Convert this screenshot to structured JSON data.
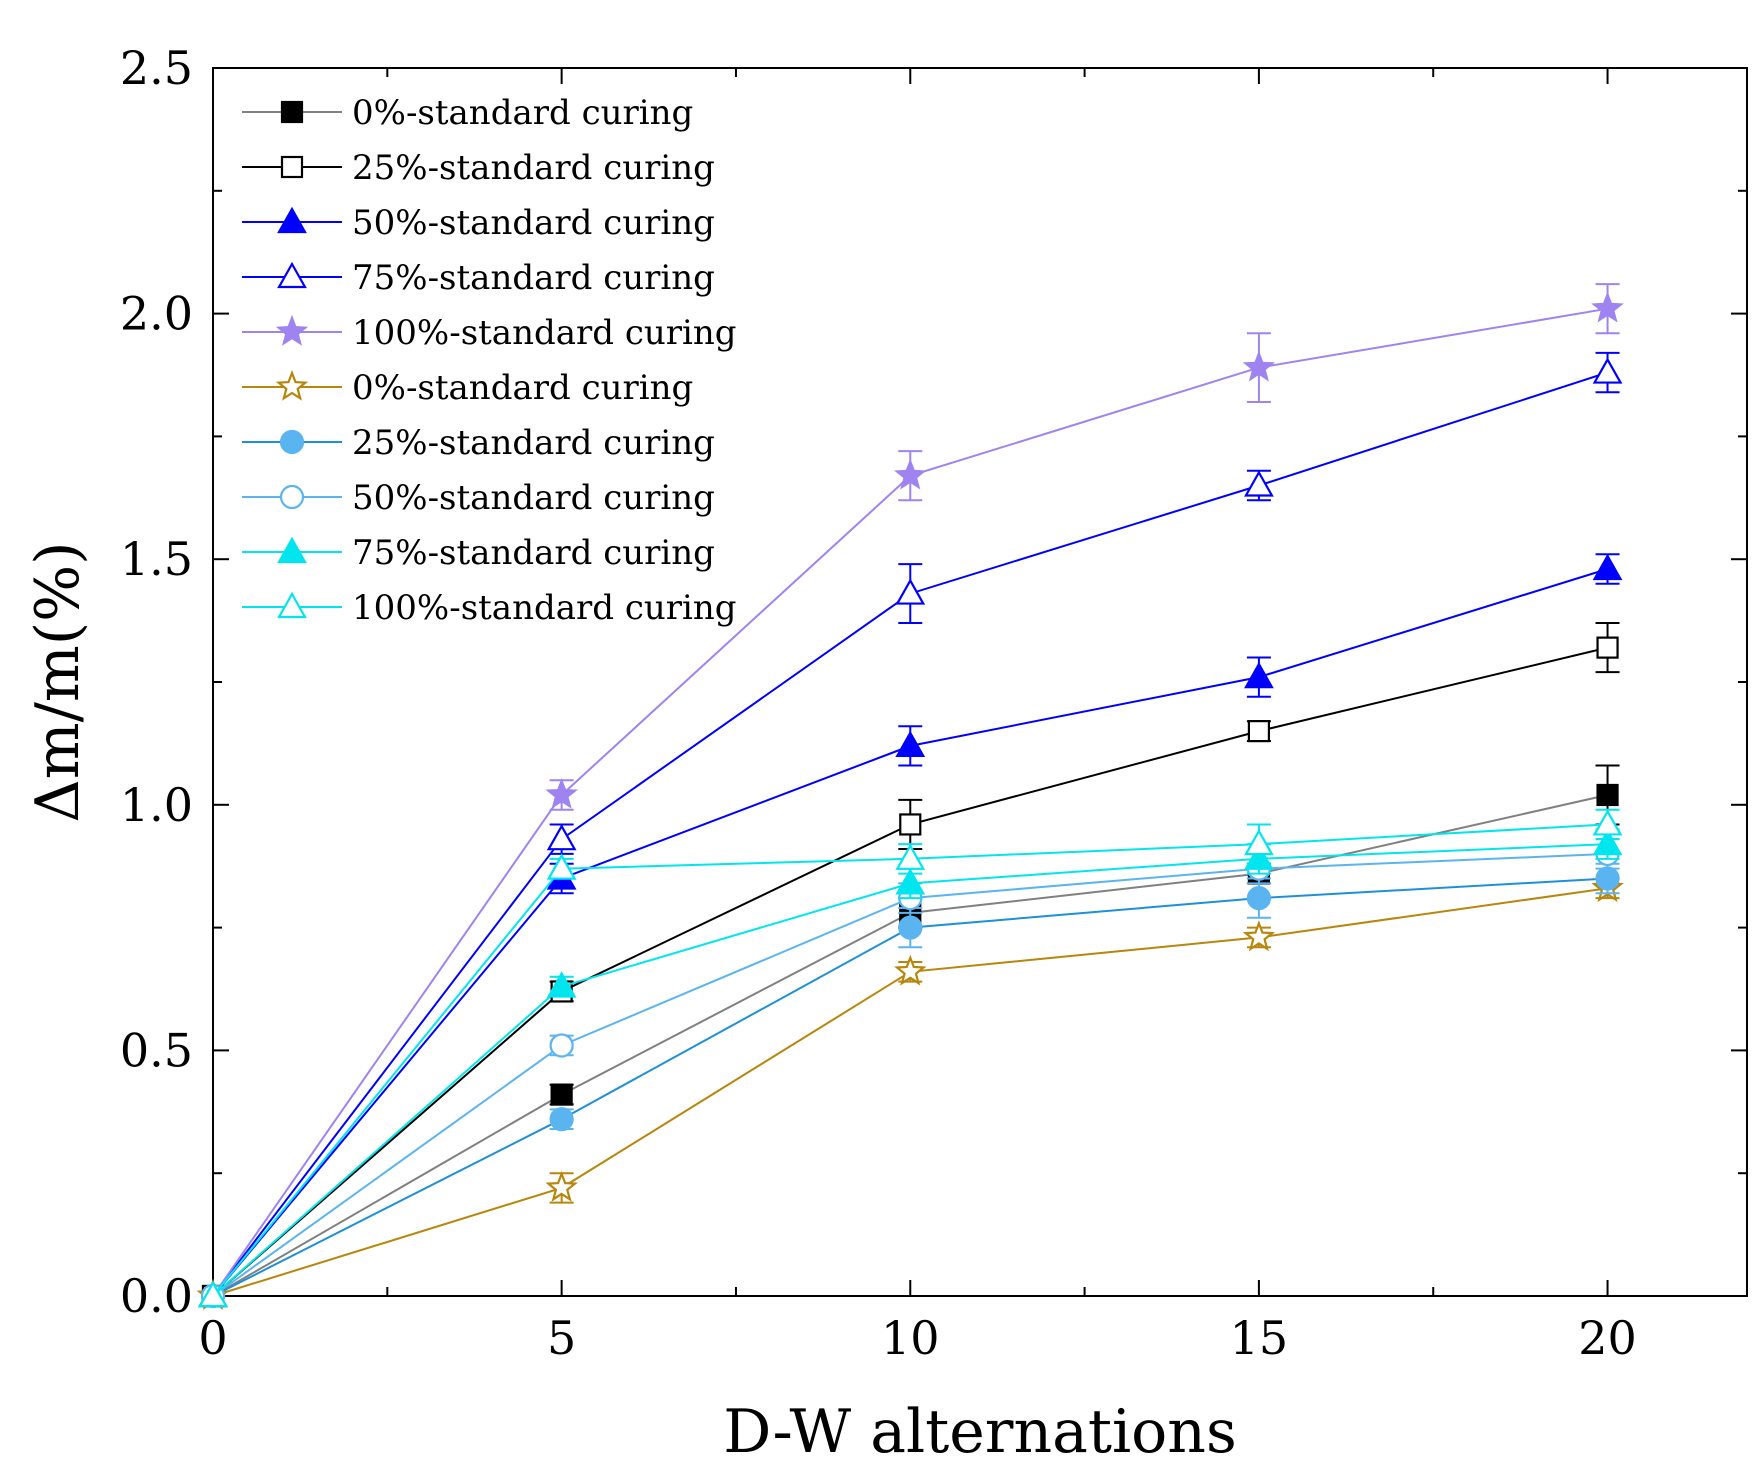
{
  "chart_data": {
    "type": "line",
    "title": "",
    "xlabel": "D-W alternations",
    "ylabel": "Δm/m(%)",
    "xlim": [
      0,
      22
    ],
    "ylim": [
      0,
      2.5
    ],
    "x_ticks": [
      0,
      5,
      10,
      15,
      20
    ],
    "y_ticks": [
      0.0,
      0.5,
      1.0,
      1.5,
      2.0,
      2.5
    ],
    "x_tick_labels": [
      "0",
      "5",
      "10",
      "15",
      "20"
    ],
    "y_tick_labels": [
      "0.0",
      "0.5",
      "1.0",
      "1.5",
      "2.0",
      "2.5"
    ],
    "legend_position": "top-left",
    "x": [
      0,
      5,
      10,
      15,
      20
    ],
    "series": [
      {
        "name": "0%-standard curing",
        "color": "#808080",
        "marker_color": "#000000",
        "marker": "square-filled",
        "values": [
          0,
          0.41,
          0.78,
          0.86,
          1.02
        ],
        "errors": [
          0,
          0.02,
          0.03,
          0.02,
          0.06
        ]
      },
      {
        "name": "25%-standard curing",
        "color": "#000000",
        "marker_color": "#000000",
        "marker": "square-open",
        "values": [
          0,
          0.62,
          0.96,
          1.15,
          1.32
        ],
        "errors": [
          0,
          0.02,
          0.05,
          0.02,
          0.05
        ]
      },
      {
        "name": "50%-standard curing",
        "color": "#0000ff",
        "marker_color": "#0000ff",
        "marker": "triangle-filled",
        "values": [
          0,
          0.85,
          1.12,
          1.26,
          1.48
        ],
        "errors": [
          0,
          0.03,
          0.04,
          0.04,
          0.03
        ]
      },
      {
        "name": "75%-standard curing",
        "color": "#0000ff",
        "marker_color": "#0000ff",
        "marker": "triangle-open",
        "values": [
          0,
          0.93,
          1.43,
          1.65,
          1.88
        ],
        "errors": [
          0,
          0.03,
          0.06,
          0.03,
          0.04
        ]
      },
      {
        "name": "100%-standard curing",
        "color": "#9f83f0",
        "marker_color": "#9f83f0",
        "marker": "star-filled",
        "values": [
          0,
          1.02,
          1.67,
          1.89,
          2.01
        ],
        "errors": [
          0,
          0.03,
          0.05,
          0.07,
          0.05
        ]
      },
      {
        "name": "0%-standard curing",
        "color": "#b8860b",
        "marker_color": "#b8860b",
        "marker": "star-open",
        "values": [
          0,
          0.22,
          0.66,
          0.73,
          0.83
        ],
        "errors": [
          0,
          0.03,
          0.02,
          0.02,
          0.02
        ]
      },
      {
        "name": "25%-standard curing",
        "color": "#1e90d8",
        "marker_color": "#5ab4f0",
        "marker": "circle-filled",
        "values": [
          0,
          0.36,
          0.75,
          0.81,
          0.85
        ],
        "errors": [
          0,
          0.02,
          0.04,
          0.04,
          0.03
        ]
      },
      {
        "name": "50%-standard curing",
        "color": "#5ab4f0",
        "marker_color": "#5ab4f0",
        "marker": "circle-open",
        "values": [
          0,
          0.51,
          0.81,
          0.87,
          0.9
        ],
        "errors": [
          0,
          0.02,
          0.03,
          0.03,
          0.03
        ]
      },
      {
        "name": "75%-standard curing",
        "color": "#00e5ee",
        "marker_color": "#00e5ee",
        "marker": "triangle-filled",
        "values": [
          0,
          0.63,
          0.84,
          0.89,
          0.92
        ],
        "errors": [
          0,
          0.02,
          0.03,
          0.03,
          0.03
        ]
      },
      {
        "name": "100%-standard curing",
        "color": "#00e5ee",
        "marker_color": "#00e5ee",
        "marker": "triangle-open",
        "values": [
          0,
          0.87,
          0.89,
          0.92,
          0.96
        ],
        "errors": [
          0,
          0.02,
          0.03,
          0.04,
          0.03
        ]
      }
    ]
  }
}
